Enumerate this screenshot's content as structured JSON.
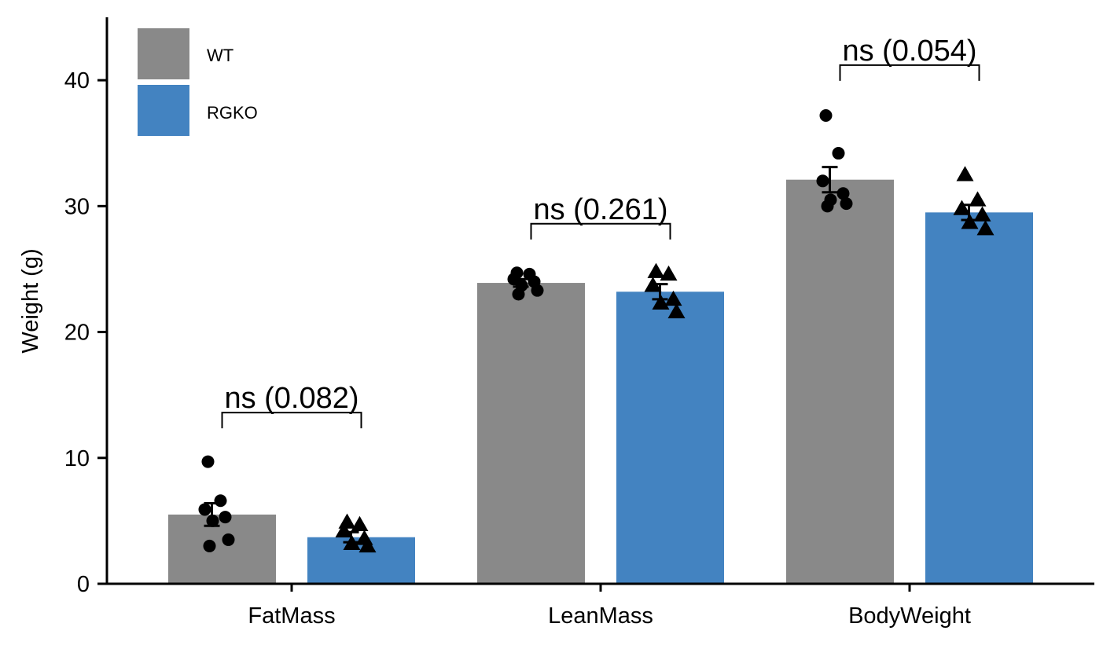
{
  "chart_data": {
    "type": "bar",
    "categories": [
      "FatMass",
      "LeanMass",
      "BodyWeight"
    ],
    "ylabel": "Weight (g)",
    "xlabel": "",
    "ylim": [
      0,
      45
    ],
    "yticks": [
      0,
      10,
      20,
      30,
      40
    ],
    "grid": false,
    "legend_placement": "top-left",
    "series": [
      {
        "name": "WT",
        "color": "#898989",
        "marker": "circle",
        "values": [
          5.5,
          23.9,
          32.1
        ],
        "sem": [
          0.9,
          0.3,
          1.0
        ],
        "points": [
          [
            9.7,
            6.6,
            5.9,
            5.3,
            5.0,
            3.5,
            3.0
          ],
          [
            24.7,
            24.6,
            24.2,
            24.0,
            23.7,
            23.3,
            23.0
          ],
          [
            37.2,
            34.2,
            32.0,
            31.0,
            30.5,
            30.2,
            30.0
          ]
        ]
      },
      {
        "name": "RGKO",
        "color": "#4383c1",
        "marker": "triangle",
        "values": [
          3.7,
          23.2,
          29.5
        ],
        "sem": [
          0.4,
          0.6,
          0.6
        ],
        "points": [
          [
            4.9,
            4.7,
            4.2,
            3.6,
            3.2,
            3.0
          ],
          [
            24.8,
            24.6,
            23.7,
            22.6,
            22.3,
            21.6
          ],
          [
            32.5,
            30.5,
            29.8,
            29.3,
            28.7,
            28.2
          ]
        ]
      }
    ],
    "comparisons": [
      {
        "category": "FatMass",
        "label": "ns (0.082)",
        "y": 13.6
      },
      {
        "category": "LeanMass",
        "label": "ns (0.261)",
        "y": 28.6
      },
      {
        "category": "BodyWeight",
        "label": "ns (0.054)",
        "y": 41.2
      }
    ]
  }
}
